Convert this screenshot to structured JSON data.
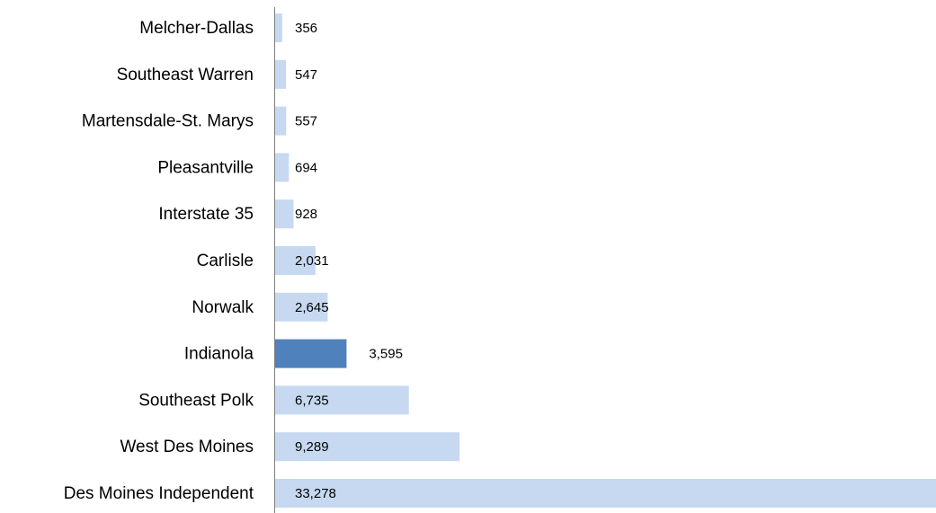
{
  "chart_data": {
    "type": "hbar",
    "categories": [
      "Melcher-Dallas",
      "Southeast Warren",
      "Martensdale-St. Marys",
      "Pleasantville",
      "Interstate 35",
      "Carlisle",
      "Norwalk",
      "Indianola",
      "Southeast Polk",
      "West Des Moines",
      "Des Moines Independent"
    ],
    "values": [
      356,
      547,
      557,
      694,
      928,
      2031,
      2645,
      3595,
      6735,
      9289,
      33278
    ],
    "value_labels": [
      "356",
      "547",
      "557",
      "694",
      "928",
      "2,031",
      "2,645",
      "3,595",
      "6,735",
      "9,289",
      "33,278"
    ],
    "colors": [
      "#c6d9f1",
      "#c6d9f1",
      "#c6d9f1",
      "#c6d9f1",
      "#c6d9f1",
      "#c6d9f1",
      "#c6d9f1",
      "#4f81bd",
      "#c6d9f1",
      "#c6d9f1",
      "#c6d9f1"
    ],
    "xlim": [
      0,
      33278
    ]
  }
}
